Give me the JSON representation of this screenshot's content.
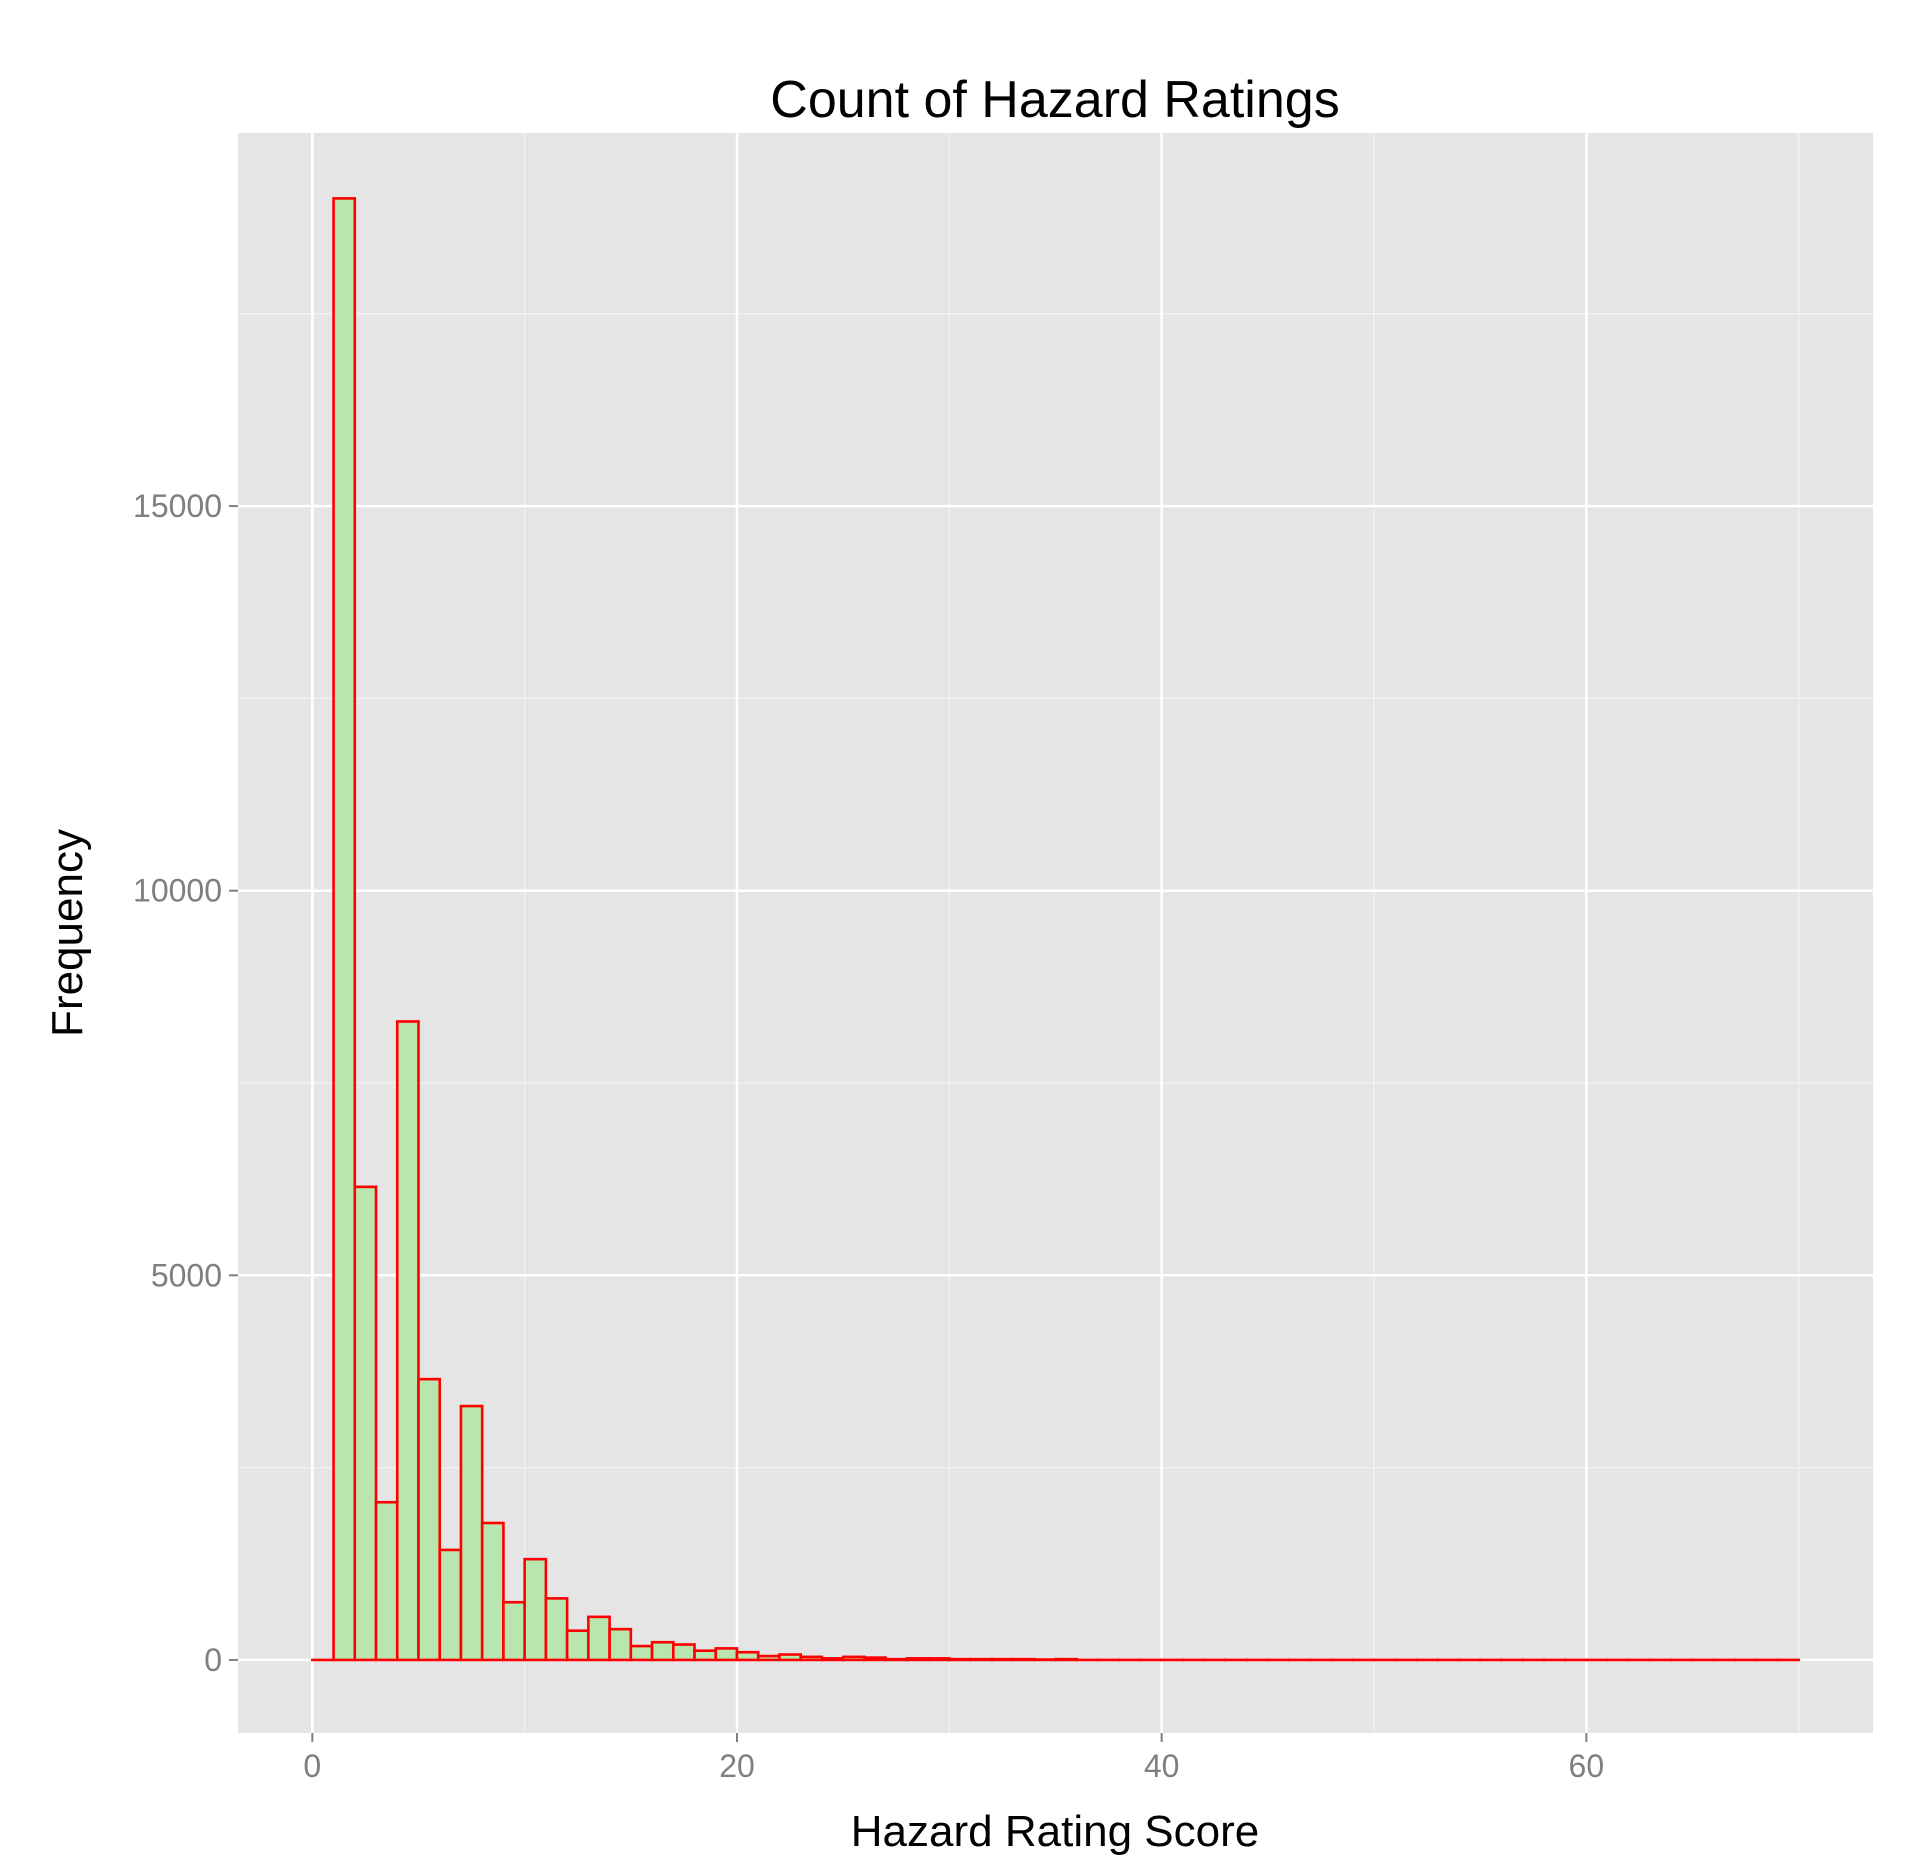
{
  "chart_data": {
    "type": "bar",
    "subtype": "histogram",
    "title": "Count of Hazard Ratings",
    "xlabel": "Hazard Rating Score",
    "ylabel": "Frequency",
    "xlim": [
      -3.5,
      73.5
    ],
    "ylim": [
      -950,
      19850
    ],
    "x_ticks": [
      0,
      20,
      40,
      60
    ],
    "x_tick_labels": [
      "0",
      "20",
      "40",
      "60"
    ],
    "y_ticks": [
      0,
      5000,
      10000,
      15000
    ],
    "y_tick_labels": [
      "0",
      "5000",
      "10000",
      "15000"
    ],
    "grid": true,
    "legend": "none",
    "bin_width": 1,
    "bin_start": 0,
    "values": [
      0,
      19000,
      6150,
      2050,
      8300,
      3650,
      1430,
      3300,
      1780,
      750,
      1310,
      800,
      380,
      560,
      400,
      180,
      230,
      200,
      120,
      150,
      100,
      50,
      70,
      40,
      20,
      40,
      30,
      10,
      20,
      20,
      10,
      10,
      10,
      10,
      5,
      10,
      0,
      0,
      0,
      0,
      0,
      0,
      0,
      0,
      0,
      0,
      0,
      0,
      0,
      0,
      0,
      0,
      0,
      0,
      0,
      0,
      0,
      0,
      0,
      0,
      0,
      0,
      0,
      0,
      0,
      0,
      0,
      0,
      0,
      0
    ],
    "colors": {
      "bar_fill": "#b8e6ae",
      "bar_outline": "#ff0000",
      "panel": "#e5e5e5",
      "grid": "#ffffff",
      "tick_label": "#7f7f7f"
    }
  }
}
